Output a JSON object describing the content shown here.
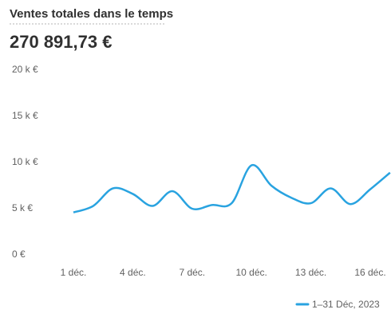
{
  "chart_data": {
    "type": "line",
    "title": "Ventes totales dans le temps",
    "total": "270 891,73 €",
    "categories": [
      "1 déc.",
      null,
      null,
      "4 déc.",
      null,
      null,
      "7 déc.",
      null,
      null,
      "10 déc.",
      null,
      null,
      "13 déc.",
      null,
      null,
      "16 déc.",
      null
    ],
    "series": [
      {
        "name": "1–31 Déc, 2023",
        "color": "#29a3e0",
        "values": [
          4600,
          5300,
          7200,
          6600,
          5300,
          6900,
          5000,
          5400,
          5600,
          9700,
          7500,
          6200,
          5600,
          7200,
          5500,
          7100,
          8900
        ]
      }
    ],
    "ylim": [
      0,
      20000
    ],
    "yticks": [
      {
        "value": 0,
        "label": "0 €"
      },
      {
        "value": 5000,
        "label": "5 k €"
      },
      {
        "value": 10000,
        "label": "10 k €"
      },
      {
        "value": 15000,
        "label": "15 k €"
      },
      {
        "value": 20000,
        "label": "20 k €"
      }
    ],
    "grid": false,
    "legend": "bottom-right"
  }
}
